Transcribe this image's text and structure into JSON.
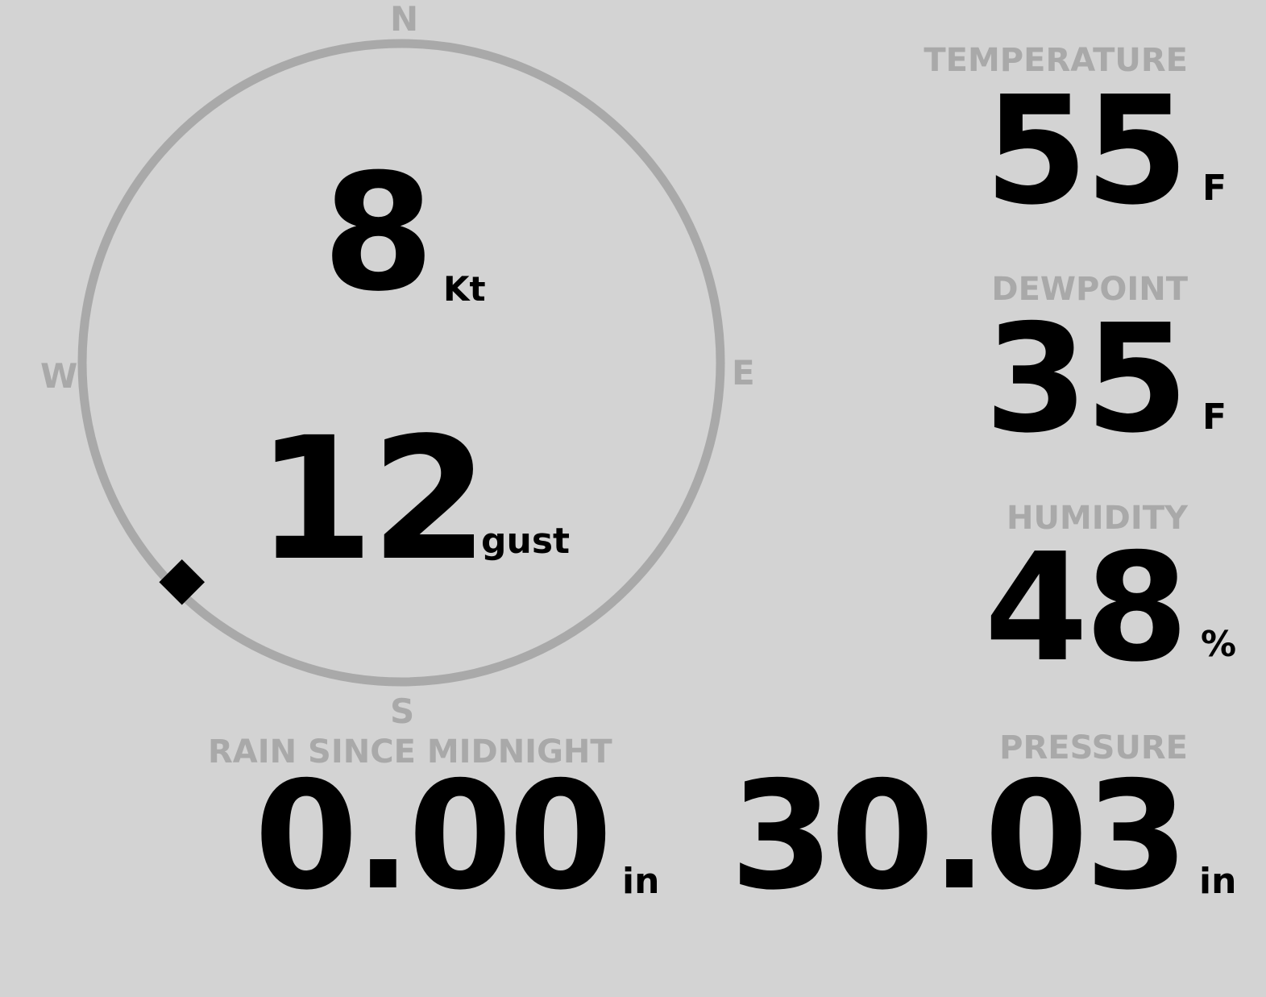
{
  "colors": {
    "background": "#d3d3d3",
    "label": "#a9a9a9",
    "value": "#000000"
  },
  "wind": {
    "compass": {
      "north": "N",
      "east": "E",
      "south": "S",
      "west": "W"
    },
    "speed": "8",
    "speed_unit": "Kt",
    "gust": "12",
    "gust_unit": "gust",
    "direction_degrees": 225,
    "direction_marker_icon": "diamond-icon"
  },
  "temperature": {
    "label": "TEMPERATURE",
    "value": "55",
    "unit": "F"
  },
  "dewpoint": {
    "label": "DEWPOINT",
    "value": "35",
    "unit": "F"
  },
  "humidity": {
    "label": "HUMIDITY",
    "value": "48",
    "unit": "%"
  },
  "rain": {
    "label": "RAIN SINCE MIDNIGHT",
    "value": "0.00",
    "unit": "in"
  },
  "pressure": {
    "label": "PRESSURE",
    "value": "30.03",
    "unit": "in"
  }
}
